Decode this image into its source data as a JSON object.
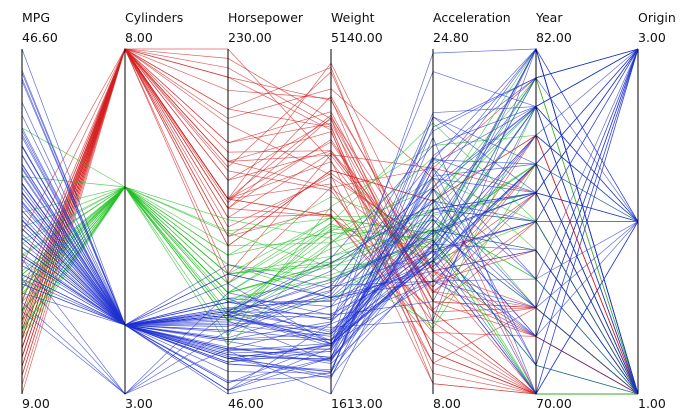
{
  "chart_data": {
    "type": "parallel-coordinates",
    "axes": [
      {
        "name": "MPG",
        "max": 46.6,
        "min": 9.0,
        "max_label": "46.60",
        "min_label": "9.00"
      },
      {
        "name": "Cylinders",
        "max": 8.0,
        "min": 3.0,
        "max_label": "8.00",
        "min_label": "3.00"
      },
      {
        "name": "Horsepower",
        "max": 230.0,
        "min": 46.0,
        "max_label": "230.00",
        "min_label": "46.00"
      },
      {
        "name": "Weight",
        "max": 5140.0,
        "min": 1613.0,
        "max_label": "5140.00",
        "min_label": "1613.00"
      },
      {
        "name": "Acceleration",
        "max": 24.8,
        "min": 8.0,
        "max_label": "24.80",
        "min_label": "8.00"
      },
      {
        "name": "Year",
        "max": 82.0,
        "min": 70.0,
        "max_label": "82.00",
        "min_label": "70.00"
      },
      {
        "name": "Origin",
        "max": 3.0,
        "min": 1.0,
        "max_label": "3.00",
        "min_label": "1.00"
      }
    ],
    "color_groups": [
      {
        "color": "#d42020",
        "cylinders": 8
      },
      {
        "color": "#1fbf1f",
        "cylinders": 6
      },
      {
        "color": "#2030d0",
        "cylinders": 4
      }
    ],
    "records": [
      [
        18,
        8,
        130,
        3504,
        12,
        70,
        1
      ],
      [
        15,
        8,
        165,
        3693,
        11.5,
        70,
        1
      ],
      [
        18,
        8,
        150,
        3436,
        11,
        70,
        1
      ],
      [
        16,
        8,
        150,
        3433,
        12,
        70,
        1
      ],
      [
        17,
        8,
        140,
        3449,
        10.5,
        70,
        1
      ],
      [
        15,
        8,
        198,
        4341,
        10,
        70,
        1
      ],
      [
        14,
        8,
        220,
        4354,
        9,
        70,
        1
      ],
      [
        14,
        8,
        215,
        4312,
        8.5,
        70,
        1
      ],
      [
        14,
        8,
        225,
        4425,
        10,
        70,
        1
      ],
      [
        15,
        8,
        190,
        3850,
        8.5,
        70,
        1
      ],
      [
        13,
        8,
        170,
        4295,
        10,
        70,
        1
      ],
      [
        14,
        8,
        160,
        4098,
        14,
        72,
        1
      ],
      [
        13,
        8,
        150,
        4464,
        12,
        73,
        1
      ],
      [
        12,
        8,
        198,
        4952,
        11.5,
        73,
        1
      ],
      [
        13,
        8,
        175,
        4100,
        13,
        73,
        1
      ],
      [
        16,
        8,
        150,
        4190,
        13,
        76,
        1
      ],
      [
        15,
        8,
        145,
        4440,
        14,
        75,
        1
      ],
      [
        17,
        8,
        140,
        4080,
        13.7,
        78,
        1
      ],
      [
        18,
        8,
        130,
        3870,
        15,
        76,
        1
      ],
      [
        19,
        8,
        125,
        3900,
        17.4,
        79,
        1
      ],
      [
        10,
        8,
        215,
        4615,
        14,
        70,
        1
      ],
      [
        9,
        8,
        193,
        4732,
        18.5,
        70,
        1
      ],
      [
        11,
        8,
        208,
        4633,
        11,
        72,
        1
      ],
      [
        12,
        8,
        180,
        4499,
        12.5,
        73,
        1
      ],
      [
        16.5,
        8,
        180,
        4380,
        12.1,
        76,
        1
      ],
      [
        17.5,
        8,
        145,
        4215,
        12.9,
        77,
        1
      ],
      [
        15.5,
        8,
        170,
        4054,
        13.2,
        79,
        1
      ],
      [
        20.2,
        8,
        135,
        3830,
        15.2,
        79,
        1
      ],
      [
        23,
        8,
        125,
        3900,
        17.4,
        79,
        1
      ],
      [
        26.6,
        8,
        105,
        3725,
        19,
        81,
        1
      ],
      [
        14,
        8,
        230,
        4000,
        9.5,
        73,
        1
      ],
      [
        13,
        8,
        150,
        3988,
        13,
        72,
        1
      ],
      [
        15,
        8,
        150,
        3761,
        9.5,
        70,
        1
      ],
      [
        16,
        8,
        170,
        3720,
        14.2,
        77,
        1
      ],
      [
        17,
        8,
        110,
        4060,
        19,
        77,
        1
      ],
      [
        11,
        8,
        150,
        4997,
        14,
        73,
        1
      ],
      [
        12,
        8,
        167,
        4906,
        12.5,
        73,
        1
      ],
      [
        14,
        8,
        148,
        4657,
        13.5,
        75,
        1
      ],
      [
        13,
        8,
        160,
        4422,
        12.5,
        72,
        1
      ],
      [
        19.2,
        8,
        145,
        3425,
        13.2,
        78,
        1
      ],
      [
        18,
        6,
        97,
        2774,
        15.5,
        70,
        1
      ],
      [
        21,
        6,
        85,
        2587,
        16,
        70,
        1
      ],
      [
        22,
        6,
        95,
        2833,
        15.5,
        70,
        1
      ],
      [
        18,
        6,
        100,
        3278,
        18,
        73,
        1
      ],
      [
        19,
        6,
        88,
        3302,
        15.5,
        71,
        1
      ],
      [
        16,
        6,
        100,
        3329,
        15.5,
        71,
        1
      ],
      [
        20,
        6,
        100,
        2914,
        16,
        75,
        1
      ],
      [
        21,
        6,
        110,
        2962,
        16,
        73,
        1
      ],
      [
        15,
        6,
        72,
        3158,
        19.5,
        75,
        1
      ],
      [
        17,
        6,
        100,
        2945,
        16.5,
        74,
        1
      ],
      [
        19,
        6,
        95,
        3102,
        16.5,
        74,
        1
      ],
      [
        24,
        6,
        110,
        3021,
        16,
        78,
        1
      ],
      [
        25.4,
        6,
        77,
        3530,
        20.1,
        79,
        2
      ],
      [
        27.2,
        6,
        110,
        2930,
        14.4,
        81,
        3
      ],
      [
        22,
        6,
        105,
        3353,
        14.5,
        76,
        1
      ],
      [
        19.8,
        6,
        90,
        3233,
        17,
        76,
        2
      ],
      [
        16.2,
        6,
        133,
        3410,
        15.8,
        78,
        2
      ],
      [
        20.5,
        6,
        105,
        3425,
        16.7,
        77,
        1
      ],
      [
        18.1,
        6,
        139,
        3205,
        11.2,
        78,
        1
      ],
      [
        32.7,
        6,
        132,
        2910,
        11.4,
        80,
        3
      ],
      [
        22.4,
        6,
        110,
        3415,
        15.8,
        81,
        1
      ],
      [
        28.8,
        6,
        115,
        2595,
        15.4,
        82,
        1
      ],
      [
        38,
        6,
        85,
        3015,
        17,
        82,
        1
      ],
      [
        24.2,
        6,
        125,
        3160,
        16.9,
        80,
        1
      ],
      [
        17,
        6,
        88,
        3164,
        18.5,
        76,
        1
      ],
      [
        21.5,
        6,
        115,
        2795,
        15.7,
        78,
        1
      ],
      [
        25.8,
        6,
        100,
        2950,
        17.3,
        81,
        1
      ],
      [
        16,
        6,
        85,
        3365,
        21.2,
        76,
        1
      ],
      [
        20.6,
        6,
        120,
        3270,
        15.1,
        80,
        3
      ],
      [
        15.5,
        6,
        120,
        3630,
        15.9,
        77,
        2
      ],
      [
        27,
        4,
        88,
        2130,
        14.5,
        70,
        3
      ],
      [
        26,
        4,
        46,
        1835,
        20.5,
        70,
        2
      ],
      [
        25,
        4,
        87,
        2672,
        17.5,
        70,
        2
      ],
      [
        24,
        4,
        90,
        2430,
        14.5,
        70,
        2
      ],
      [
        28,
        4,
        90,
        2264,
        15.5,
        71,
        1
      ],
      [
        35,
        4,
        69,
        1613,
        18,
        71,
        3
      ],
      [
        31,
        4,
        65,
        1773,
        19,
        71,
        3
      ],
      [
        27,
        4,
        88,
        2100,
        16.5,
        72,
        3
      ],
      [
        29,
        4,
        67,
        1950,
        19,
        74,
        3
      ],
      [
        31.5,
        4,
        70,
        1990,
        17,
        76,
        3
      ],
      [
        33,
        4,
        53,
        1795,
        17.4,
        76,
        3
      ],
      [
        36,
        4,
        58,
        1825,
        21.5,
        77,
        2
      ],
      [
        43.1,
        4,
        48,
        1985,
        21.5,
        78,
        2
      ],
      [
        36.1,
        4,
        66,
        1800,
        14.4,
        78,
        1
      ],
      [
        32.8,
        4,
        52,
        1985,
        19.4,
        78,
        3
      ],
      [
        39.4,
        4,
        70,
        2070,
        18.6,
        78,
        3
      ],
      [
        46.6,
        4,
        65,
        2110,
        17.9,
        80,
        3
      ],
      [
        44.3,
        4,
        48,
        2085,
        21.7,
        80,
        2
      ],
      [
        43.4,
        4,
        48,
        2335,
        23.7,
        80,
        2
      ],
      [
        44,
        4,
        52,
        2130,
        24.6,
        82,
        2
      ],
      [
        40.8,
        4,
        65,
        2110,
        19.2,
        80,
        3
      ],
      [
        37.3,
        4,
        69,
        2130,
        14.7,
        79,
        2
      ],
      [
        34.1,
        4,
        65,
        1975,
        15.2,
        79,
        3
      ],
      [
        32,
        4,
        65,
        1836,
        21,
        81,
        3
      ],
      [
        30,
        4,
        70,
        2074,
        19.5,
        77,
        2
      ],
      [
        29,
        4,
        75,
        2171,
        16,
        75,
        1
      ],
      [
        26,
        4,
        95,
        2375,
        17.5,
        73,
        2
      ],
      [
        24,
        4,
        95,
        2372,
        15,
        70,
        3
      ],
      [
        22,
        4,
        97,
        2506,
        14.5,
        72,
        3
      ],
      [
        21,
        4,
        110,
        2600,
        13.5,
        74,
        1
      ],
      [
        23,
        4,
        115,
        2694,
        15,
        76,
        1
      ],
      [
        25,
        4,
        92,
        2572,
        14.9,
        76,
        2
      ],
      [
        28,
        4,
        79,
        2625,
        18.6,
        82,
        1
      ],
      [
        27,
        4,
        88,
        2790,
        15.6,
        82,
        1
      ],
      [
        32,
        4,
        84,
        2295,
        11.6,
        82,
        1
      ],
      [
        34,
        4,
        88,
        2395,
        18,
        82,
        1
      ],
      [
        31,
        4,
        82,
        2720,
        19.4,
        82,
        1
      ],
      [
        36,
        4,
        74,
        1980,
        15.3,
        82,
        2
      ],
      [
        38,
        4,
        63,
        2125,
        14.7,
        82,
        1
      ],
      [
        37,
        4,
        68,
        2045,
        18.5,
        77,
        3
      ],
      [
        31.9,
        4,
        71,
        1925,
        14,
        79,
        2
      ],
      [
        29.8,
        4,
        62,
        1845,
        15.3,
        80,
        2
      ],
      [
        27.9,
        4,
        90,
        2950,
        17.3,
        80,
        1
      ],
      [
        26.4,
        4,
        88,
        2870,
        18.1,
        80,
        1
      ],
      [
        24.3,
        4,
        90,
        3003,
        20.1,
        80,
        1
      ],
      [
        23.6,
        4,
        105,
        2125,
        14.5,
        78,
        1
      ],
      [
        30.9,
        4,
        75,
        2230,
        14.5,
        78,
        1
      ],
      [
        20,
        4,
        91,
        2600,
        17,
        77,
        1
      ],
      [
        25,
        4,
        87,
        2223,
        16,
        73,
        1
      ],
      [
        24,
        4,
        80,
        2164,
        15,
        72,
        1
      ],
      [
        21,
        4,
        86,
        2226,
        16.5,
        72,
        2
      ],
      [
        26,
        4,
        92,
        2245,
        16.7,
        73,
        3
      ],
      [
        22,
        4,
        76,
        2511,
        18,
        74,
        2
      ],
      [
        23,
        4,
        83,
        2202,
        15.3,
        75,
        1
      ],
      [
        30,
        4,
        67,
        1965,
        15,
        80,
        3
      ],
      [
        33.5,
        4,
        85,
        1945,
        16.8,
        77,
        3
      ],
      [
        29.5,
        4,
        97,
        2159,
        15.9,
        77,
        3
      ],
      [
        35.1,
        4,
        62,
        1860,
        19.6,
        81,
        3
      ],
      [
        37.7,
        4,
        88,
        2160,
        14.5,
        81,
        3
      ],
      [
        33.7,
        4,
        75,
        2350,
        16.2,
        81,
        3
      ],
      [
        21.5,
        4,
        110,
        2600,
        14,
        75,
        1
      ],
      [
        25.5,
        4,
        89,
        2755,
        15.8,
        77,
        1
      ],
      [
        30.5,
        4,
        63,
        2051,
        17,
        77,
        2
      ],
      [
        28.4,
        4,
        80,
        2660,
        20.8,
        81,
        2
      ],
      [
        27.5,
        4,
        95,
        2560,
        14.2,
        78,
        3
      ],
      [
        19,
        3,
        70,
        2330,
        13.5,
        72,
        3
      ],
      [
        23.7,
        3,
        100,
        2420,
        12.5,
        80,
        3
      ],
      [
        21.5,
        3,
        80,
        2720,
        13.5,
        77,
        3
      ],
      [
        18,
        3,
        90,
        2124,
        13.5,
        73,
        3
      ]
    ]
  }
}
